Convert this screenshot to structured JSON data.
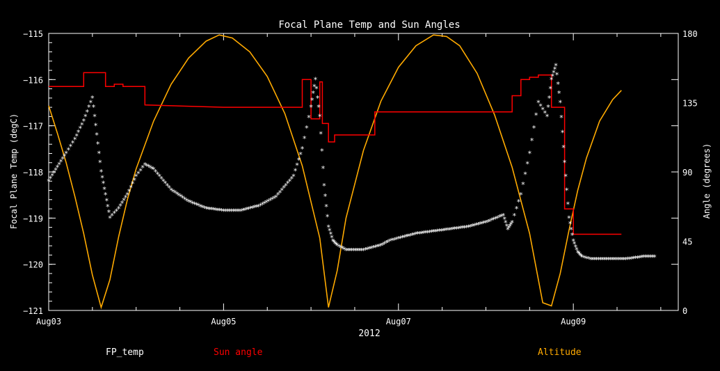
{
  "chart_data": {
    "type": "line",
    "title": "Focal Plane Temp and Sun Angles",
    "xlabel": "2012",
    "ylabel": "Focal Plane Temp (degC)",
    "ylabel_right": "Angle (degrees)",
    "x_ticks": [
      "Aug03",
      "Aug05",
      "Aug07",
      "Aug09"
    ],
    "xlim_days": [
      3.0,
      10.2
    ],
    "ylim": [
      -121,
      -115
    ],
    "y_ticks": [
      "-115",
      "-116",
      "-117",
      "-118",
      "-119",
      "-120",
      "-121"
    ],
    "ylim_right": [
      0,
      180
    ],
    "y_ticks_right": [
      "0",
      "45",
      "90",
      "135",
      "180"
    ],
    "grid": false,
    "legend_placement": "bottom",
    "series": [
      {
        "name": "FP_temp",
        "color": "#ffffff",
        "marker": "asterisk",
        "axis": "left",
        "x": [
          3.0,
          3.1,
          3.2,
          3.3,
          3.4,
          3.5,
          3.55,
          3.6,
          3.65,
          3.7,
          3.8,
          3.9,
          4.0,
          4.1,
          4.2,
          4.4,
          4.6,
          4.8,
          5.0,
          5.2,
          5.4,
          5.6,
          5.8,
          5.9,
          6.0,
          6.05,
          6.1,
          6.15,
          6.2,
          6.25,
          6.3,
          6.4,
          6.6,
          6.8,
          6.9,
          7.0,
          7.2,
          7.4,
          7.6,
          7.8,
          8.0,
          8.2,
          8.25,
          8.3,
          8.4,
          8.5,
          8.6,
          8.7,
          8.75,
          8.8,
          8.85,
          8.9,
          8.95,
          9.0,
          9.05,
          9.1,
          9.2,
          9.4,
          9.6,
          9.8,
          9.95
        ],
        "values": [
          -118.2,
          -117.9,
          -117.6,
          -117.3,
          -116.9,
          -116.4,
          -117.2,
          -118.0,
          -118.5,
          -119.0,
          -118.8,
          -118.5,
          -118.1,
          -117.85,
          -117.95,
          -118.4,
          -118.65,
          -118.8,
          -118.85,
          -118.85,
          -118.75,
          -118.55,
          -118.1,
          -117.5,
          -116.6,
          -116.0,
          -116.8,
          -118.3,
          -119.2,
          -119.5,
          -119.6,
          -119.7,
          -119.7,
          -119.6,
          -119.5,
          -119.45,
          -119.35,
          -119.3,
          -119.25,
          -119.2,
          -119.1,
          -118.95,
          -119.25,
          -119.1,
          -118.5,
          -117.6,
          -116.5,
          -116.8,
          -116.0,
          -115.7,
          -116.5,
          -117.8,
          -119.0,
          -119.5,
          -119.75,
          -119.85,
          -119.9,
          -119.9,
          -119.9,
          -119.85,
          -119.85
        ]
      },
      {
        "name": "Sun angle",
        "color": "#ff0000",
        "axis": "left",
        "x": [
          3.0,
          3.4,
          3.4,
          3.65,
          3.65,
          3.75,
          3.75,
          3.85,
          3.85,
          4.1,
          4.1,
          5.0,
          5.0,
          5.9,
          5.9,
          6.0,
          6.0,
          6.1,
          6.1,
          6.13,
          6.13,
          6.2,
          6.2,
          6.27,
          6.27,
          6.43,
          6.43,
          6.73,
          6.73,
          6.8,
          6.8,
          7.5,
          7.5,
          8.3,
          8.3,
          8.4,
          8.4,
          8.5,
          8.5,
          8.6,
          8.6,
          8.75,
          8.75,
          8.9,
          8.9,
          9.0,
          9.0,
          9.05,
          9.05,
          9.55
        ],
        "values": [
          -116.15,
          -116.15,
          -115.85,
          -115.85,
          -116.15,
          -116.15,
          -116.1,
          -116.1,
          -116.15,
          -116.15,
          -116.55,
          -116.6,
          -116.6,
          -116.6,
          -116.0,
          -116.0,
          -116.85,
          -116.85,
          -116.05,
          -116.05,
          -116.95,
          -116.95,
          -117.35,
          -117.35,
          -117.2,
          -117.2,
          -117.2,
          -117.2,
          -116.7,
          -116.7,
          -116.7,
          -116.7,
          -116.7,
          -116.7,
          -116.35,
          -116.35,
          -116.0,
          -116.0,
          -115.95,
          -115.95,
          -115.9,
          -115.9,
          -116.6,
          -116.6,
          -118.8,
          -118.8,
          -119.35,
          -119.35,
          -119.35,
          -119.35
        ]
      },
      {
        "name": "Altitude",
        "color": "#ffaa00",
        "axis": "right",
        "x": [
          3.0,
          3.1,
          3.2,
          3.3,
          3.4,
          3.5,
          3.6,
          3.7,
          3.8,
          3.9,
          4.0,
          4.2,
          4.4,
          4.6,
          4.8,
          4.95,
          5.1,
          5.3,
          5.5,
          5.7,
          5.9,
          6.1,
          6.2,
          6.3,
          6.4,
          6.6,
          6.8,
          7.0,
          7.2,
          7.4,
          7.55,
          7.7,
          7.9,
          8.1,
          8.3,
          8.5,
          8.65,
          8.75,
          8.85,
          8.95,
          9.05,
          9.15,
          9.3,
          9.45,
          9.55
        ],
        "values": [
          133,
          115,
          96,
          74,
          50,
          23,
          2,
          20,
          48,
          72,
          92,
          123,
          147,
          164,
          175,
          179,
          177,
          168,
          152,
          128,
          94,
          47,
          2,
          26,
          60,
          104,
          136,
          158,
          172,
          179,
          178,
          172,
          154,
          127,
          93,
          50,
          5,
          3,
          24,
          52,
          78,
          99,
          123,
          137,
          143
        ]
      }
    ]
  }
}
